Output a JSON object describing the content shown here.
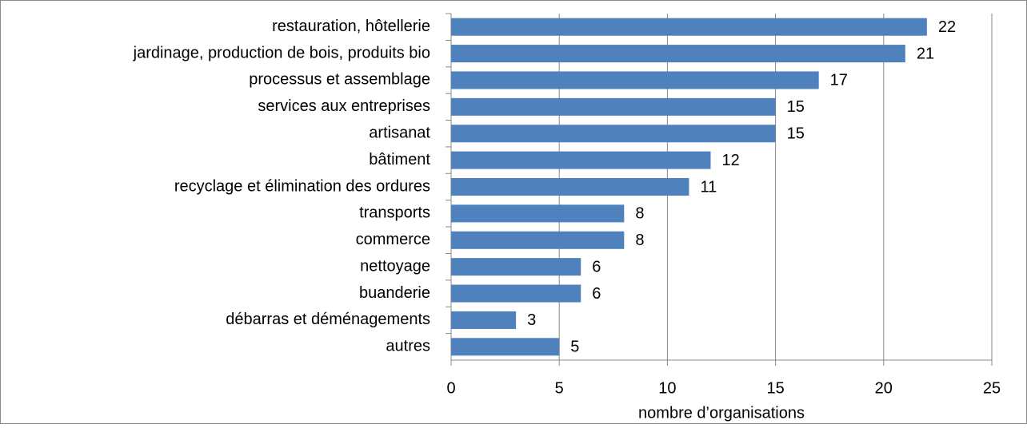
{
  "chart_data": {
    "type": "hbar",
    "categories": [
      "restauration, hôtellerie",
      "jardinage, production de bois, produits bio",
      "processus et assemblage",
      "services aux entreprises",
      "artisanat",
      "bâtiment",
      "recyclage et élimination des ordures",
      "transports",
      "commerce",
      "nettoyage",
      "buanderie",
      "débarras et déménagements",
      "autres"
    ],
    "values": [
      22,
      21,
      17,
      15,
      15,
      12,
      11,
      8,
      8,
      6,
      6,
      3,
      5
    ],
    "color": "#4f81bd",
    "xlabel": "nombre d’organisations",
    "xlim": [
      0,
      25
    ],
    "xticks": [
      0,
      5,
      10,
      15,
      20,
      25
    ],
    "grid": true
  }
}
